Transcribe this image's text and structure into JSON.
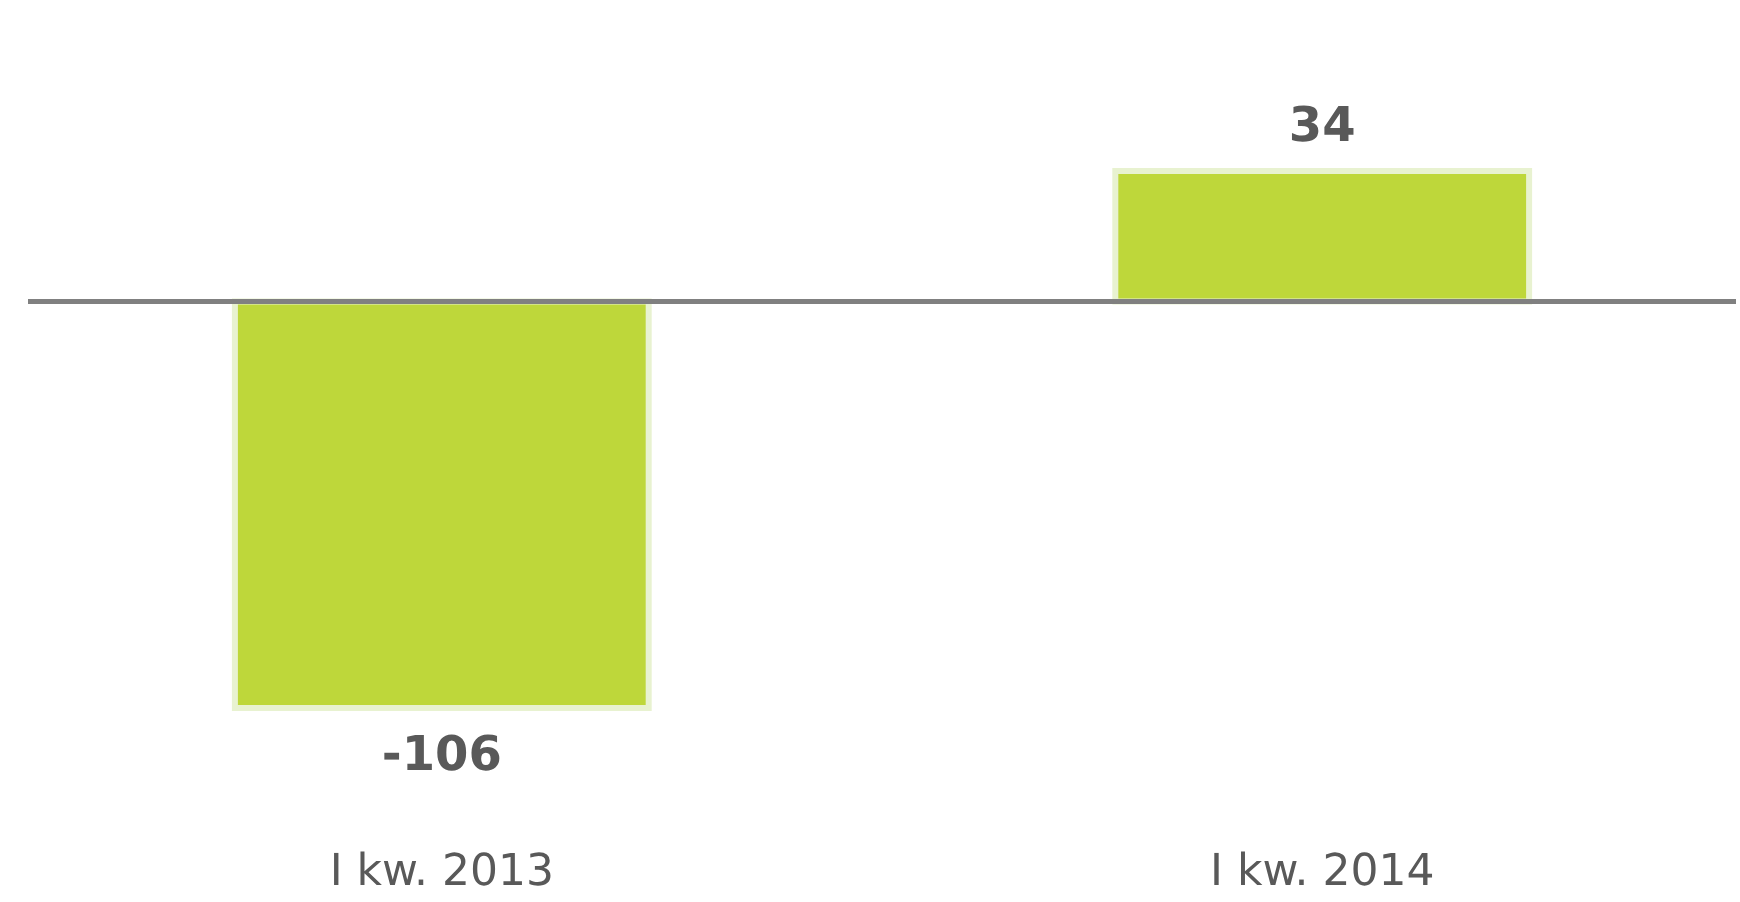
{
  "chart_data": {
    "type": "bar",
    "categories": [
      "I kw. 2013",
      "I kw. 2014"
    ],
    "values": [
      -106,
      34
    ],
    "color": "#bed73a",
    "data_labels": true
  }
}
